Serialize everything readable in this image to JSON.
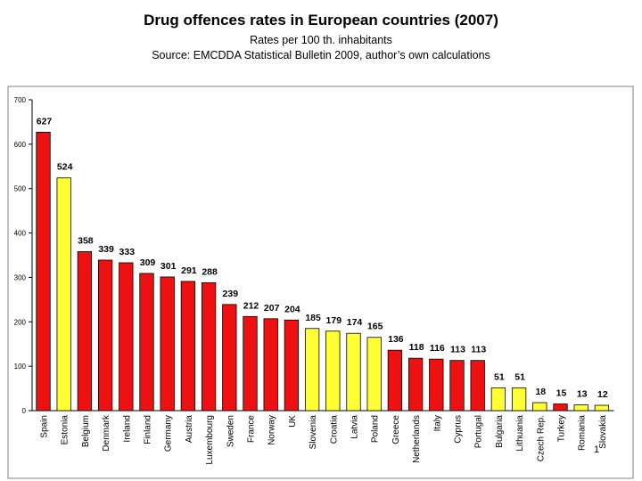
{
  "header": {
    "title": "Drug offences rates in European countries (2007)",
    "subtitle_line1": "Rates per 100 th. inhabitants",
    "subtitle_line2": "Source: EMCDDA Statistical Bulletin 2009, author’s own calculations"
  },
  "slide_number": "1",
  "colors": {
    "highlight": "#FFFF33",
    "default": "#EE1111",
    "plot_border": "#808080"
  },
  "chart_data": {
    "type": "bar",
    "title": "Drug offences rates in European countries (2007)",
    "xlabel": "",
    "ylabel": "",
    "ylim": [
      0,
      700
    ],
    "yticks": [
      0,
      100,
      200,
      300,
      400,
      500,
      600,
      700
    ],
    "grid": false,
    "categories": [
      "Spain",
      "Estonia",
      "Belgium",
      "Denmark",
      "Ireland",
      "Finland",
      "Germany",
      "Austria",
      "Luxembourg",
      "Sweden",
      "France",
      "Norway",
      "UK",
      "Slovenia",
      "Croatia",
      "Latvia",
      "Poland",
      "Greece",
      "Netherlands",
      "Italy",
      "Cyprus",
      "Portugal",
      "Bulgaria",
      "Lithuania",
      "Czech Rep.",
      "Turkey",
      "Romania",
      "Slovakia"
    ],
    "values": [
      627,
      524,
      358,
      339,
      333,
      309,
      301,
      291,
      288,
      239,
      212,
      207,
      204,
      185,
      179,
      174,
      165,
      136,
      118,
      116,
      113,
      113,
      51,
      51,
      18,
      15,
      13,
      12
    ],
    "highlighted": [
      false,
      true,
      false,
      false,
      false,
      false,
      false,
      false,
      false,
      false,
      false,
      false,
      false,
      true,
      true,
      true,
      true,
      false,
      false,
      false,
      false,
      false,
      true,
      true,
      true,
      false,
      true,
      true
    ]
  }
}
